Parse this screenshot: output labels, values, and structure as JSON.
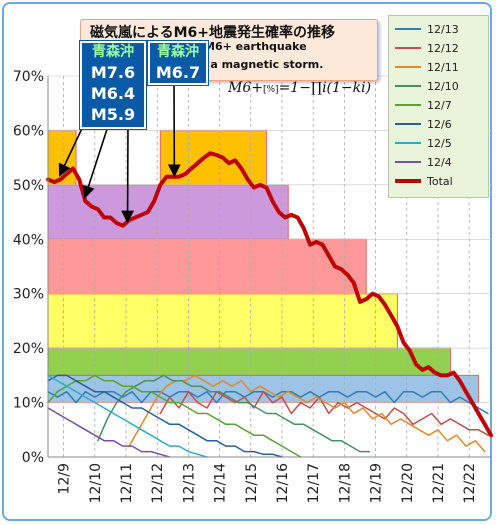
{
  "title": {
    "jp": "磁気嵐によるM6+地震発生確率の推移",
    "en1": "M6+ earthquake",
    "en2": "bility by a magnetic storm."
  },
  "formula": {
    "lhs": "M6+",
    "unit": "[%]",
    "rhs": "=1−∏i(1−ki)"
  },
  "callouts": [
    {
      "place": "青森沖",
      "mags": [
        "M7.6",
        "M6.4",
        "M5.9"
      ]
    },
    {
      "place": "青森沖",
      "mags": [
        "M6.7"
      ]
    }
  ],
  "legend": [
    {
      "name": "12/13",
      "color": "#2f7fb5"
    },
    {
      "name": "12/12",
      "color": "#c0504d"
    },
    {
      "name": "12/11",
      "color": "#e08a2c"
    },
    {
      "name": "12/10",
      "color": "#4b8f63"
    },
    {
      "name": "12/7",
      "color": "#5aa235"
    },
    {
      "name": "12/6",
      "color": "#2a5f9e"
    },
    {
      "name": "12/5",
      "color": "#2ab0c4"
    },
    {
      "name": "12/4",
      "color": "#7a4fa3"
    },
    {
      "name": "Total",
      "color": "#c00000"
    }
  ],
  "chart_data": {
    "type": "line",
    "ylim": [
      0,
      70
    ],
    "yticks": [
      "0%",
      "10%",
      "20%",
      "30%",
      "40%",
      "50%",
      "60%",
      "70%"
    ],
    "xlim": [
      8.5,
      22.7
    ],
    "xticks": [
      "12/9",
      "12/10",
      "12/11",
      "12/12",
      "12/13",
      "12/14",
      "12/15",
      "12/16",
      "12/17",
      "12/18",
      "12/19",
      "12/20",
      "12/21",
      "12/22"
    ],
    "bands": [
      {
        "x0": 8.5,
        "x1": 22.3,
        "y0": 10,
        "y1": 15,
        "color": "#9dc3e6"
      },
      {
        "x0": 8.5,
        "x1": 21.4,
        "y0": 15,
        "y1": 20,
        "color": "#92d050"
      },
      {
        "x0": 8.5,
        "x1": 19.7,
        "y0": 20,
        "y1": 30,
        "color": "#ffff66"
      },
      {
        "x0": 8.5,
        "x1": 18.7,
        "y0": 30,
        "y1": 40,
        "color": "#ff9999"
      },
      {
        "x0": 8.5,
        "x1": 16.2,
        "y0": 40,
        "y1": 50,
        "color": "#cc99dd"
      },
      {
        "x0": 8.5,
        "x1": 9.4,
        "y0": 50,
        "y1": 60,
        "color": "#ffc000"
      },
      {
        "x0": 12.1,
        "x1": 15.5,
        "y0": 50,
        "y1": 60,
        "color": "#ffc000"
      }
    ],
    "series": [
      {
        "name": "Total",
        "color": "#c00000",
        "width": 4,
        "x": [
          8.5,
          8.7,
          8.9,
          9.1,
          9.3,
          9.5,
          9.7,
          9.9,
          10.1,
          10.3,
          10.5,
          10.7,
          10.9,
          11.1,
          11.3,
          11.5,
          11.7,
          11.9,
          12.1,
          12.3,
          12.5,
          12.7,
          12.9,
          13.1,
          13.3,
          13.5,
          13.7,
          13.9,
          14.1,
          14.3,
          14.5,
          14.7,
          14.9,
          15.1,
          15.3,
          15.5,
          15.7,
          15.9,
          16.1,
          16.3,
          16.5,
          16.7,
          16.9,
          17.1,
          17.3,
          17.5,
          17.7,
          17.9,
          18.1,
          18.3,
          18.5,
          18.7,
          18.9,
          19.1,
          19.3,
          19.5,
          19.7,
          19.9,
          20.1,
          20.3,
          20.5,
          20.7,
          20.9,
          21.1,
          21.3,
          21.5,
          21.7,
          21.9,
          22.1,
          22.3,
          22.5,
          22.7
        ],
        "y": [
          51,
          50.5,
          51,
          52,
          53,
          51,
          47,
          46,
          45.5,
          44,
          44,
          43,
          42.5,
          43.5,
          44,
          44.5,
          45,
          47,
          50,
          51.5,
          51.5,
          51.5,
          52,
          53,
          54,
          55,
          55.8,
          55.5,
          55,
          54,
          54.5,
          53,
          51,
          49.5,
          50,
          49.5,
          47,
          45,
          44,
          44.5,
          44,
          42,
          39,
          39.5,
          39,
          37,
          35,
          34.5,
          33.5,
          32,
          28.5,
          29,
          30,
          29.5,
          28,
          26,
          24,
          21,
          19.5,
          17,
          16,
          16.5,
          15.5,
          15,
          15,
          15.5,
          14,
          12,
          10,
          8,
          6,
          4
        ]
      },
      {
        "name": "12/13",
        "color": "#2f7fb5",
        "width": 1.5,
        "x": [
          8.5,
          8.8,
          9.1,
          9.4,
          9.7,
          10.0,
          10.3,
          10.6,
          10.9,
          11.2,
          11.5,
          11.8,
          12.1,
          12.4,
          12.7,
          13.0,
          13.3,
          13.6,
          13.9,
          14.2,
          14.5,
          14.8,
          15.1,
          15.4,
          15.7,
          16.0,
          16.3,
          16.6,
          16.9,
          17.2,
          17.5,
          17.8,
          18.1,
          18.4,
          18.7,
          19.0,
          19.3,
          19.6,
          19.9,
          20.2,
          20.5,
          20.8,
          21.1,
          21.4,
          21.7,
          22.0,
          22.3,
          22.6
        ],
        "y": [
          12,
          11,
          12,
          10,
          12,
          11,
          12,
          12,
          11,
          12,
          10,
          12,
          12,
          11,
          12,
          12,
          11,
          12,
          10,
          12,
          12,
          11,
          12,
          12,
          11,
          12,
          12,
          11,
          12,
          11,
          12,
          12,
          11,
          12,
          12,
          11,
          12,
          10,
          12,
          12,
          11,
          12,
          12,
          10,
          11,
          10,
          9,
          8
        ]
      },
      {
        "name": "12/12",
        "color": "#c0504d",
        "width": 1.5,
        "x": [
          12.1,
          12.4,
          12.7,
          13.0,
          13.3,
          13.6,
          13.9,
          14.2,
          14.5,
          14.8,
          15.1,
          15.4,
          15.7,
          16.0,
          16.3,
          16.6,
          16.9,
          17.2,
          17.5,
          17.8,
          18.1,
          18.4,
          18.7,
          19.0,
          19.3,
          19.6,
          19.9,
          20.2,
          20.5,
          20.8,
          21.1,
          21.4,
          21.7,
          22.0,
          22.3,
          22.6
        ],
        "y": [
          8,
          11,
          9,
          12,
          10,
          9,
          12,
          11,
          10,
          11,
          9,
          12,
          10,
          11,
          8,
          10,
          9,
          11,
          8,
          10,
          9,
          10,
          9,
          8,
          7,
          9,
          8,
          6,
          7,
          8,
          6,
          7,
          6,
          5,
          5,
          4
        ]
      },
      {
        "name": "12/11",
        "color": "#e08a2c",
        "width": 1.5,
        "x": [
          11.1,
          11.4,
          11.7,
          12.0,
          12.3,
          12.6,
          12.9,
          13.2,
          13.5,
          13.8,
          14.1,
          14.4,
          14.7,
          15.0,
          15.3,
          15.6,
          15.9,
          16.2,
          16.5,
          16.8,
          17.1,
          17.4,
          17.7,
          18.0,
          18.3,
          18.6,
          18.9,
          19.2,
          19.5,
          19.8,
          20.1,
          20.4,
          20.7,
          21.0,
          21.3,
          21.6,
          21.9,
          22.2,
          22.5
        ],
        "y": [
          2,
          5,
          8,
          11,
          13,
          14,
          14,
          15,
          14,
          13,
          14,
          13,
          14,
          12,
          13,
          12,
          11,
          12,
          11,
          10,
          11,
          10,
          9,
          10,
          8,
          9,
          7,
          8,
          6,
          7,
          6,
          5,
          4,
          5,
          3,
          4,
          2,
          3,
          1
        ]
      },
      {
        "name": "12/10",
        "color": "#4b8f63",
        "width": 1.5,
        "x": [
          10.1,
          10.4,
          10.7,
          11.0,
          11.3,
          11.6,
          11.9,
          12.2,
          12.5,
          12.8,
          13.1,
          13.4,
          13.7,
          14.0,
          14.3,
          14.6,
          14.9,
          15.2,
          15.5,
          15.8,
          16.1,
          16.4,
          16.7,
          17.0,
          17.3,
          17.6,
          17.9,
          18.2,
          18.5,
          18.8
        ],
        "y": [
          3,
          7,
          10,
          12,
          13,
          14,
          14,
          15,
          14,
          14,
          13,
          13,
          12,
          12,
          11,
          10,
          10,
          9,
          8,
          8,
          7,
          6,
          6,
          5,
          4,
          3,
          3,
          2,
          1,
          1
        ]
      },
      {
        "name": "12/7",
        "color": "#5aa235",
        "width": 1.5,
        "x": [
          8.5,
          8.8,
          9.1,
          9.4,
          9.7,
          10.0,
          10.3,
          10.6,
          10.9,
          11.2,
          11.5,
          11.8,
          12.1,
          12.4,
          12.7,
          13.0,
          13.3,
          13.6,
          13.9,
          14.2,
          14.5,
          14.8,
          15.1,
          15.4,
          15.7,
          16.0,
          16.3,
          16.6
        ],
        "y": [
          10,
          12,
          13,
          14,
          14,
          15,
          14,
          14,
          13,
          13,
          12,
          12,
          11,
          10,
          10,
          9,
          8,
          8,
          7,
          6,
          6,
          5,
          4,
          4,
          3,
          2,
          1,
          0
        ]
      },
      {
        "name": "12/6",
        "color": "#2a5f9e",
        "width": 1.5,
        "x": [
          8.5,
          8.8,
          9.1,
          9.4,
          9.7,
          10.0,
          10.3,
          10.6,
          10.9,
          11.2,
          11.5,
          11.8,
          12.1,
          12.4,
          12.7,
          13.0,
          13.3,
          13.6,
          13.9,
          14.2,
          14.5,
          14.8,
          15.1,
          15.4,
          15.7,
          16.0
        ],
        "y": [
          14,
          15,
          15,
          14,
          13,
          12,
          12,
          11,
          10,
          9,
          9,
          8,
          7,
          6,
          6,
          5,
          4,
          3,
          3,
          2,
          2,
          1,
          1,
          0.5,
          0.5,
          0
        ]
      },
      {
        "name": "12/5",
        "color": "#2ab0c4",
        "width": 1.5,
        "x": [
          8.5,
          8.8,
          9.1,
          9.4,
          9.7,
          10.0,
          10.3,
          10.6,
          10.9,
          11.2,
          11.5,
          11.8,
          12.1,
          12.4,
          12.7,
          13.0,
          13.3,
          13.6
        ],
        "y": [
          15,
          14,
          13,
          12,
          11,
          10,
          9,
          8,
          7,
          6,
          5,
          4,
          3,
          2,
          2,
          1,
          0.5,
          0
        ]
      },
      {
        "name": "12/4",
        "color": "#7a4fa3",
        "width": 1.5,
        "x": [
          8.5,
          8.8,
          9.1,
          9.4,
          9.7,
          10.0,
          10.3,
          10.6,
          10.9,
          11.2,
          11.5,
          11.8,
          12.1,
          12.4
        ],
        "y": [
          9,
          8,
          7,
          6,
          5,
          4,
          3,
          3,
          2,
          2,
          1,
          1,
          0.5,
          0
        ]
      }
    ]
  }
}
